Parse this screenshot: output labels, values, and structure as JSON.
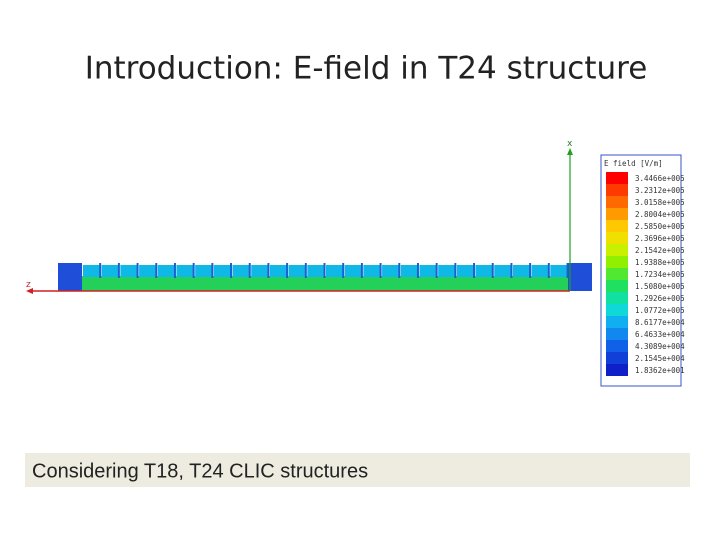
{
  "slide": {
    "title": "Introduction: E-field in T24 structure",
    "figure": {
      "axis_x": "x",
      "axis_z": "z",
      "legend": {
        "title": "E field [V/m]",
        "labels": [
          "3.4466e+005",
          "3.2312e+005",
          "3.0158e+005",
          "2.8004e+005",
          "2.5850e+005",
          "2.3696e+005",
          "2.1542e+005",
          "1.9388e+005",
          "1.7234e+005",
          "1.5080e+005",
          "1.2926e+005",
          "1.0772e+005",
          "8.6177e+004",
          "6.4633e+004",
          "4.3089e+004",
          "2.1545e+004",
          "1.8362e+001"
        ]
      }
    },
    "caption": "Considering T18, T24 CLIC structures"
  }
}
